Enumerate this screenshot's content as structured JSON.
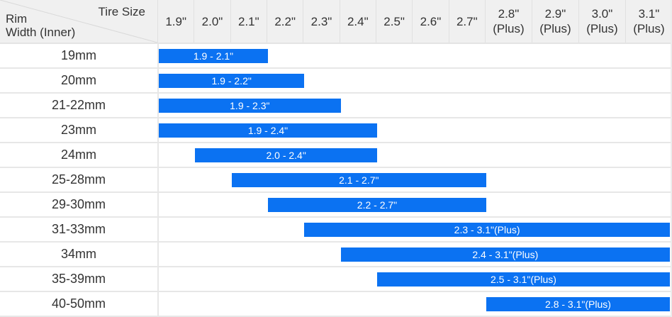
{
  "chart_data": {
    "type": "bar",
    "variant": "horizontal_range_compatibility_table",
    "title": "",
    "x_axis_label": "Tire Size",
    "y_axis_label": "Rim Width (Inner)",
    "legend": "none",
    "grid": "row separators only",
    "columns": [
      {
        "size": 1.9,
        "label": "1.9\""
      },
      {
        "size": 2.0,
        "label": "2.0\""
      },
      {
        "size": 2.1,
        "label": "2.1\""
      },
      {
        "size": 2.2,
        "label": "2.2\""
      },
      {
        "size": 2.3,
        "label": "2.3\""
      },
      {
        "size": 2.4,
        "label": "2.4\""
      },
      {
        "size": 2.5,
        "label": "2.5\""
      },
      {
        "size": 2.6,
        "label": "2.6\""
      },
      {
        "size": 2.7,
        "label": "2.7\""
      },
      {
        "size": 2.8,
        "label": "2.8\"",
        "sub": "(Plus)"
      },
      {
        "size": 2.9,
        "label": "2.9\"",
        "sub": "(Plus)"
      },
      {
        "size": 3.0,
        "label": "3.0\"",
        "sub": "(Plus)"
      },
      {
        "size": 3.1,
        "label": "3.1\"",
        "sub": "(Plus)"
      }
    ],
    "rows": [
      {
        "rim_width": "19mm",
        "from": 1.9,
        "to": 2.1,
        "bar_label": "1.9 - 2.1\""
      },
      {
        "rim_width": "20mm",
        "from": 1.9,
        "to": 2.2,
        "bar_label": "1.9 - 2.2\""
      },
      {
        "rim_width": "21-22mm",
        "from": 1.9,
        "to": 2.3,
        "bar_label": "1.9 - 2.3\""
      },
      {
        "rim_width": "23mm",
        "from": 1.9,
        "to": 2.4,
        "bar_label": "1.9 - 2.4\""
      },
      {
        "rim_width": "24mm",
        "from": 2.0,
        "to": 2.4,
        "bar_label": "2.0 - 2.4\""
      },
      {
        "rim_width": "25-28mm",
        "from": 2.1,
        "to": 2.7,
        "bar_label": "2.1 - 2.7\""
      },
      {
        "rim_width": "29-30mm",
        "from": 2.2,
        "to": 2.7,
        "bar_label": "2.2 - 2.7\""
      },
      {
        "rim_width": "31-33mm",
        "from": 2.3,
        "to": 3.1,
        "bar_label": "2.3 - 3.1\"(Plus)"
      },
      {
        "rim_width": "34mm",
        "from": 2.4,
        "to": 3.1,
        "bar_label": "2.4 - 3.1\"(Plus)"
      },
      {
        "rim_width": "35-39mm",
        "from": 2.5,
        "to": 3.1,
        "bar_label": "2.5 - 3.1\"(Plus)"
      },
      {
        "rim_width": "40-50mm",
        "from": 2.8,
        "to": 3.1,
        "bar_label": "2.8 - 3.1\"(Plus)"
      }
    ]
  },
  "corner": {
    "tire_size_label": "Tire Size",
    "rim_width_label_line1": "Rim",
    "rim_width_label_line2": "Width (Inner)"
  },
  "colors": {
    "bar": "#0b72f2",
    "bar_text": "#ffffff",
    "header_bg": "#f0f0f0",
    "row_separator": "#e7e7e7",
    "text": "#333333"
  }
}
